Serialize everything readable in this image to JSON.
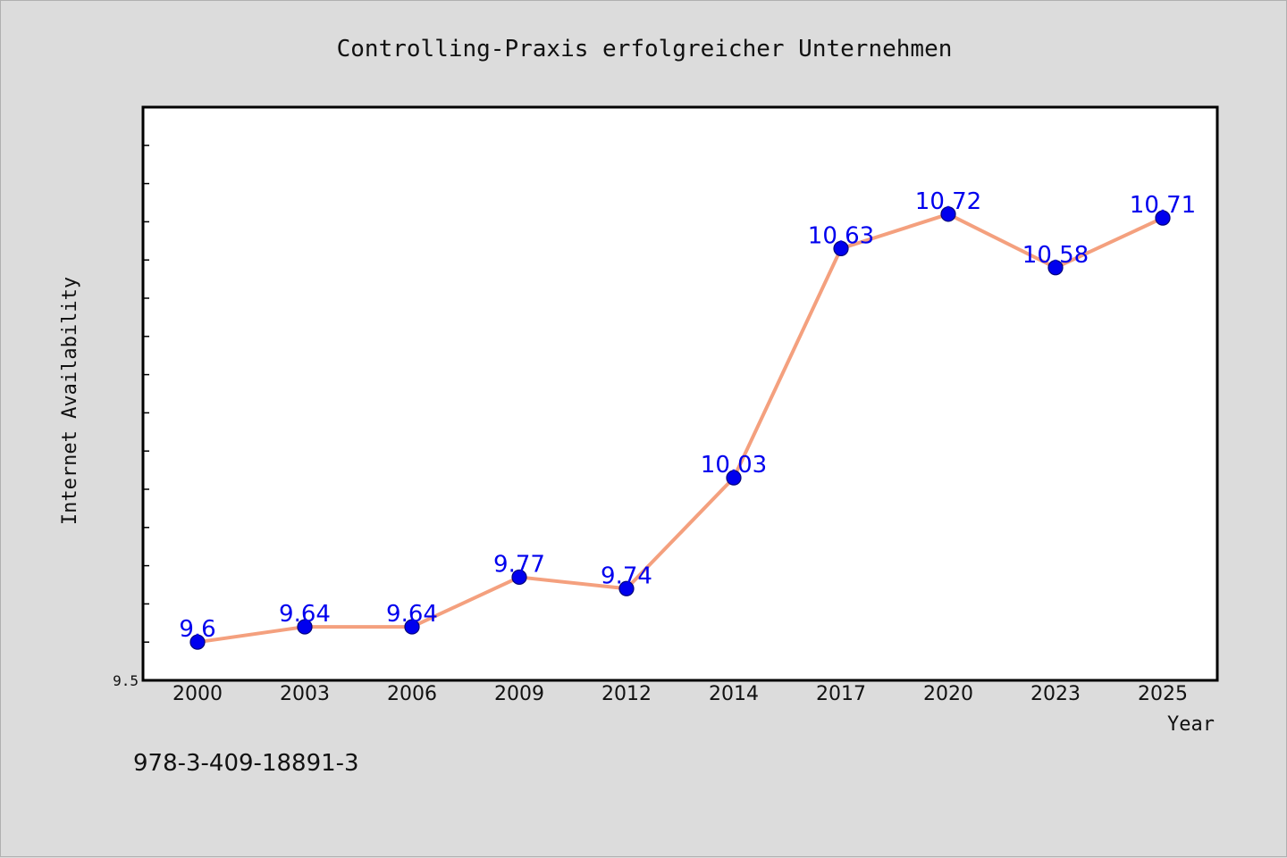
{
  "chart_data": {
    "type": "line",
    "title": "Controlling-Praxis erfolgreicher Unternehmen",
    "xlabel": "Year",
    "ylabel": "Internet Availability",
    "categories": [
      "2000",
      "2003",
      "2006",
      "2009",
      "2012",
      "2014",
      "2017",
      "2020",
      "2023",
      "2025"
    ],
    "series": [
      {
        "values": [
          9.6,
          9.64,
          9.64,
          9.77,
          9.74,
          10.03,
          10.63,
          10.72,
          10.58,
          10.71
        ],
        "labels": [
          "9.6",
          "9.64",
          "9.64",
          "9.77",
          "9.74",
          "10.03",
          "10.63",
          "10.72",
          "10.58",
          "10.71"
        ]
      }
    ],
    "ylim": [
      9.5,
      11.0
    ],
    "ytick_labels": [
      "9.5"
    ],
    "grid": false,
    "colors": {
      "line": "#f4a07e",
      "marker": "#0000ee",
      "marker_edge": "#00007a",
      "data_label": "#0000ee",
      "plot_bg": "#ffffff",
      "figure_bg": "#dcdcdc"
    }
  },
  "footer": {
    "isbn": "978-3-409-18891-3"
  }
}
